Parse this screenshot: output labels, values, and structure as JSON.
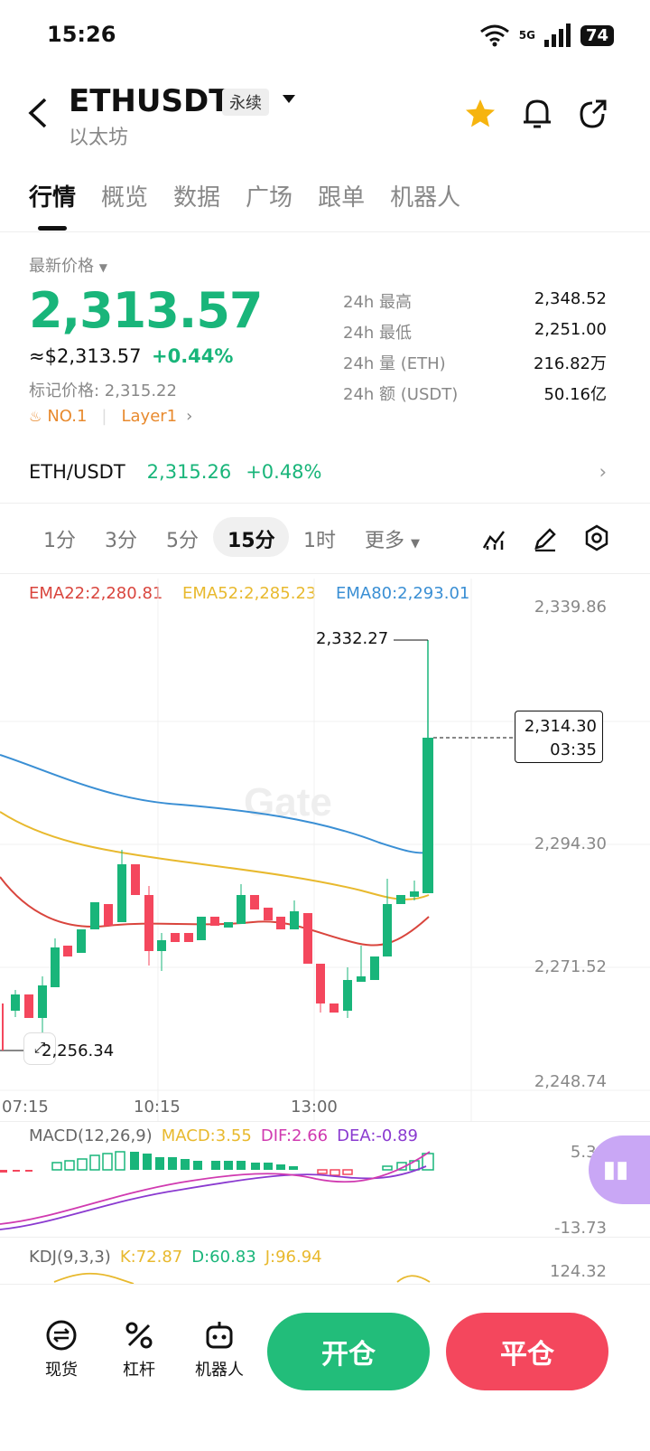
{
  "status": {
    "time": "15:26",
    "network": "5G",
    "battery": "74"
  },
  "header": {
    "symbol": "ETHUSDT",
    "contract_type": "永续",
    "name": "以太坊"
  },
  "tabs": [
    "行情",
    "概览",
    "数据",
    "广场",
    "跟单",
    "机器人"
  ],
  "price": {
    "label": "最新价格",
    "last": "2,313.57",
    "usd": "≈$2,313.57",
    "change": "+0.44%",
    "mark_label": "标记价格: 2,315.22",
    "tag1": "NO.1",
    "tag2": "Layer1"
  },
  "stats": [
    {
      "k": "24h  最高",
      "v": "2,348.52"
    },
    {
      "k": "24h  最低",
      "v": "2,251.00"
    },
    {
      "k": "24h  量 (ETH)",
      "v": "216.82万"
    },
    {
      "k": "24h  额 (USDT)",
      "v": "50.16亿"
    }
  ],
  "spot": {
    "pair": "ETH/USDT",
    "price": "2,315.26",
    "change": "+0.48%"
  },
  "timeframes": [
    "1分",
    "3分",
    "5分",
    "15分",
    "1时",
    "更多"
  ],
  "timeframe_active": "15分",
  "ema": {
    "e22": "EMA22:2,280.81",
    "e52": "EMA52:2,285.23",
    "e80": "EMA80:2,293.01"
  },
  "axis": {
    "p1": "2,339.86",
    "p2": "2,294.30",
    "p3": "2,271.52",
    "p4": "2,248.74"
  },
  "chart_labels": {
    "high": "2,332.27",
    "current_price": "2,314.30",
    "countdown": "03:35",
    "low": "2,256.34",
    "watermark": "Gate"
  },
  "time_axis": [
    "07:15",
    "10:15",
    "13:00"
  ],
  "macd": {
    "title": "MACD(12,26,9)",
    "macd": "MACD:3.55",
    "dif": "DIF:2.66",
    "dea": "DEA:-0.89",
    "top": "5.36",
    "bottom": "-13.73"
  },
  "kdj": {
    "title": "KDJ(9,3,3)",
    "k": "K:72.87",
    "d": "D:60.83",
    "j": "J:96.94",
    "top": "124.32"
  },
  "bottom": {
    "spot": "现货",
    "lever": "杠杆",
    "bot": "机器人",
    "open": "开仓",
    "close": "平仓"
  },
  "colors": {
    "green": "#19b57a",
    "red": "#f4475d",
    "ema22": "#d9453d",
    "ema52": "#e8b92e",
    "ema80": "#3a8fd4"
  }
}
